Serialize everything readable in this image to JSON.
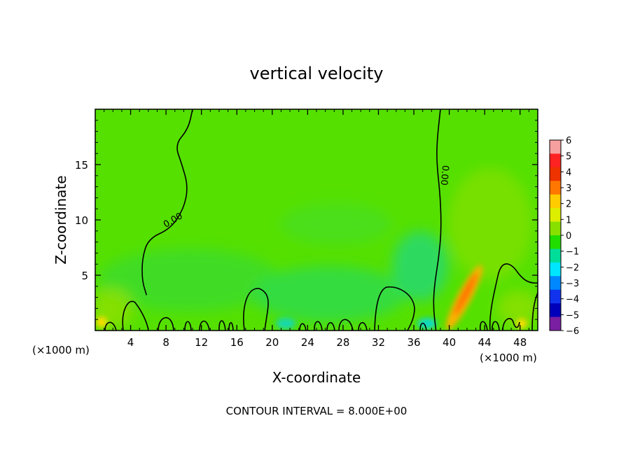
{
  "chart_data": {
    "type": "heatmap",
    "title": "vertical velocity",
    "xlabel": "X-coordinate",
    "ylabel": "Z-coordinate",
    "x_unit_left": "(×1000 m)",
    "x_unit_right": "(×1000 m)",
    "xlim": [
      0,
      50
    ],
    "ylim": [
      0,
      20
    ],
    "x_ticks": [
      4,
      8,
      12,
      16,
      20,
      24,
      28,
      32,
      36,
      40,
      44,
      48
    ],
    "y_ticks": [
      5,
      10,
      15
    ],
    "colorbar": {
      "levels": [
        6,
        5,
        4,
        3,
        2,
        1,
        0,
        -1,
        -2,
        -3,
        -4,
        -5,
        -6
      ],
      "labels": [
        "6",
        "5",
        "4",
        "3",
        "2",
        "1",
        "0",
        "−1",
        "−2",
        "−3",
        "−4",
        "−5",
        "−6"
      ],
      "colors": [
        "#f7a0a0",
        "#ff2222",
        "#ee3300",
        "#ff7700",
        "#ffcc00",
        "#ddee00",
        "#88e000",
        "#22dd00",
        "#00dd99",
        "#00e6ff",
        "#0088ff",
        "#1133ee",
        "#0000bb",
        "#7a1fa2"
      ]
    },
    "contour_label": "0.00",
    "contour_lines": [
      {
        "label": "0.00",
        "points": [
          [
            11.0,
            20
          ],
          [
            10.5,
            18.2
          ],
          [
            9.0,
            16.8
          ],
          [
            9.8,
            15.0
          ],
          [
            10.5,
            13.0
          ],
          [
            10.0,
            11.0
          ],
          [
            8.5,
            9.2
          ],
          [
            6.0,
            8.3
          ],
          [
            5.3,
            6.5
          ],
          [
            5.3,
            4.5
          ],
          [
            5.8,
            3.2
          ]
        ]
      },
      {
        "label": "0.00",
        "points": [
          [
            39.0,
            20
          ],
          [
            38.6,
            17.0
          ],
          [
            38.6,
            15.0
          ],
          [
            39.0,
            12.0
          ],
          [
            39.1,
            9.0
          ],
          [
            38.8,
            6.5
          ],
          [
            38.3,
            4.0
          ],
          [
            38.2,
            2.0
          ],
          [
            38.5,
            0
          ]
        ]
      }
    ],
    "contour_interval_text": "CONTOUR INTERVAL =  8.000E+00"
  }
}
